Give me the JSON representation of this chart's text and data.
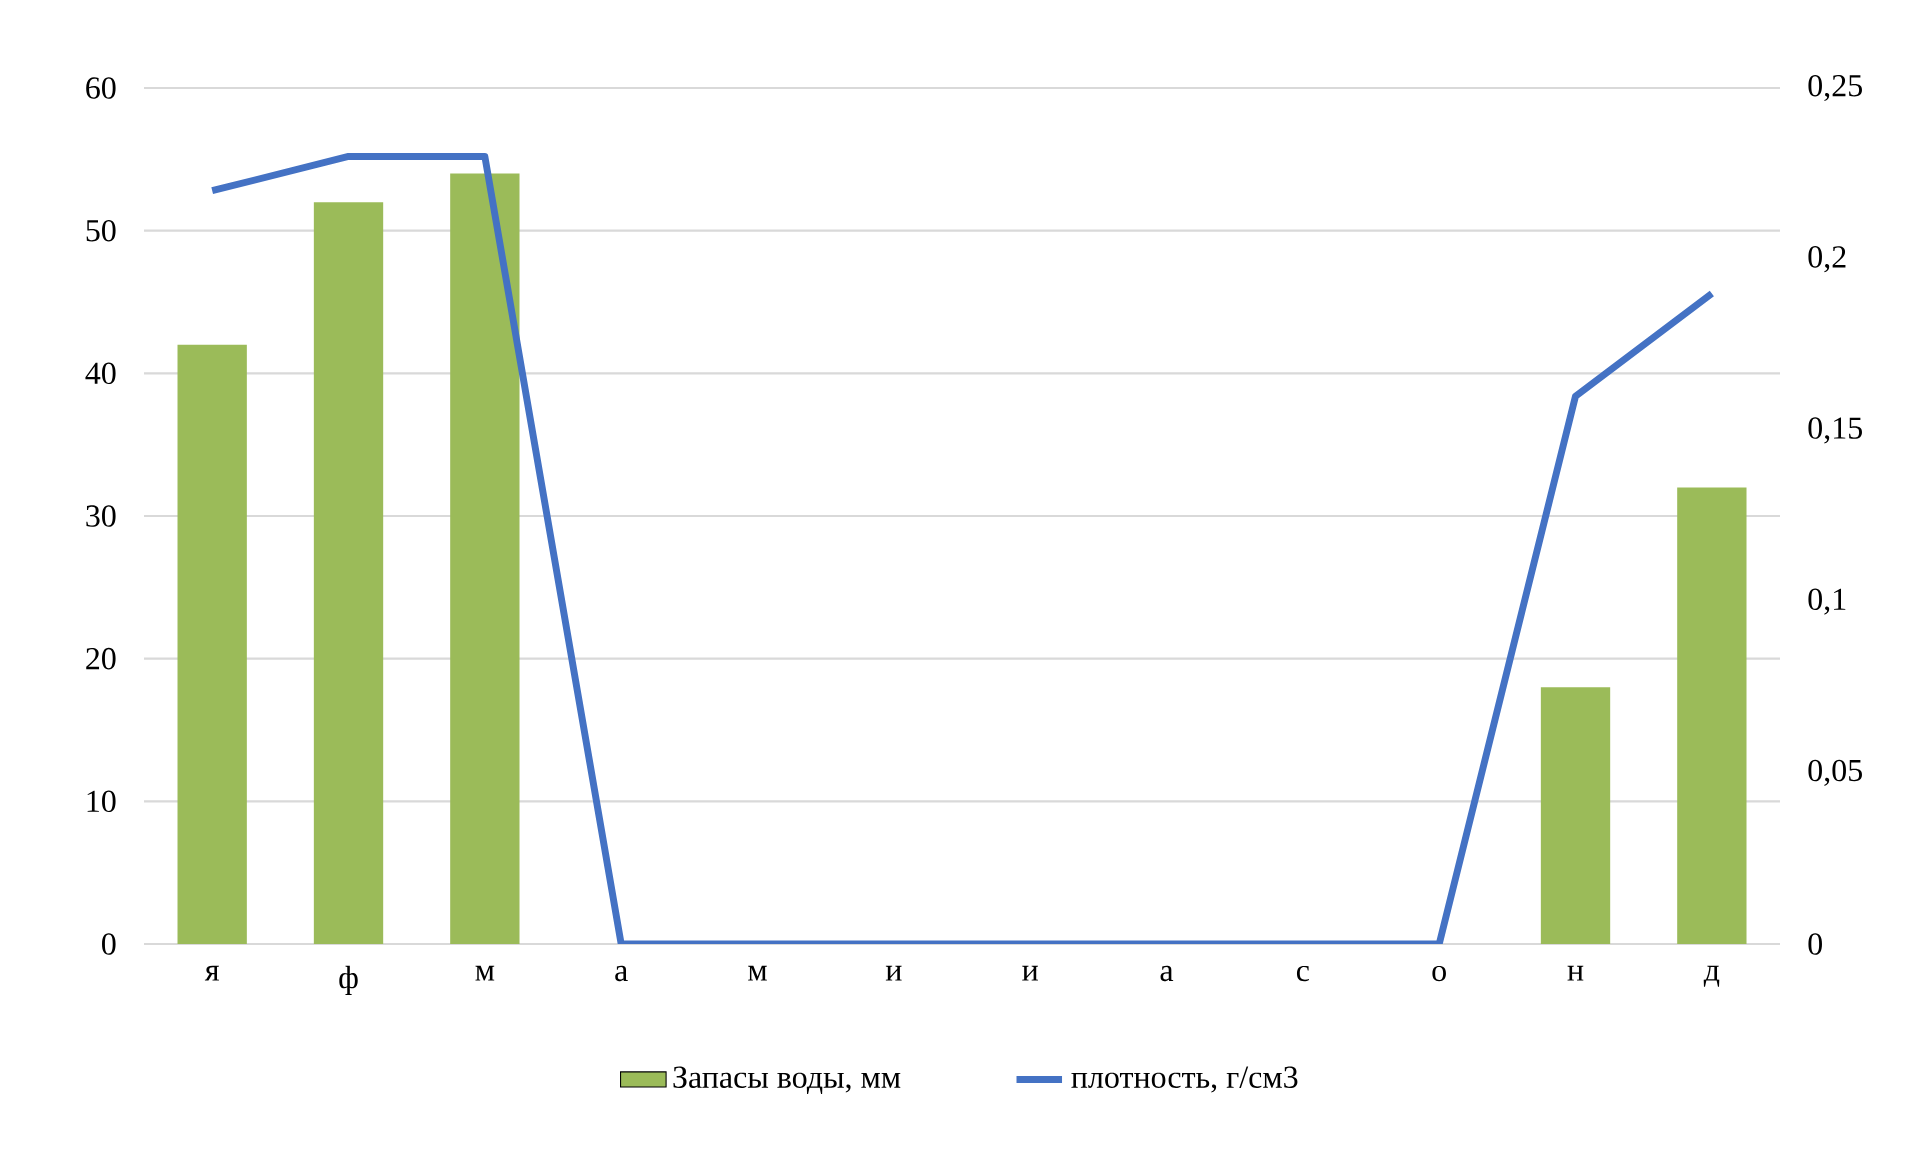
{
  "chart_data": {
    "type": "bar",
    "categories": [
      "я",
      "ф",
      "м",
      "а",
      "м",
      "и",
      "и",
      "а",
      "с",
      "о",
      "н",
      "д"
    ],
    "series": [
      {
        "name": "Запасы воды, мм",
        "color": "#9bbb59",
        "values": [
          42,
          52,
          54,
          null,
          null,
          null,
          null,
          null,
          null,
          null,
          18,
          32
        ]
      },
      {
        "name": "плотность, г/см3",
        "color": "#4472c4",
        "type": "line",
        "axis": "y2",
        "values": [
          0.22,
          0.23,
          0.23,
          0,
          0,
          0,
          0,
          0,
          0,
          0,
          0.16,
          0.19
        ]
      }
    ],
    "ylim": [
      0,
      60
    ],
    "yticks": [
      0,
      10,
      20,
      30,
      40,
      50,
      60
    ],
    "y2lim": [
      0,
      0.25
    ],
    "y2ticks": [
      0,
      {
        "value": 0.05,
        "label": "0,05"
      },
      {
        "value": 0.1,
        "label": "0,1"
      },
      {
        "value": 0.15,
        "label": "0,15"
      },
      {
        "value": 0.2,
        "label": "0,2"
      },
      {
        "value": 0.25,
        "label": "0,25"
      }
    ],
    "grid": "y",
    "legend": "bottom",
    "marker": "none",
    "line_style": "solid"
  }
}
